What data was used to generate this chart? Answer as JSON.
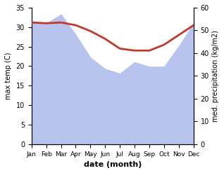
{
  "months": [
    "Jan",
    "Feb",
    "Mar",
    "Apr",
    "May",
    "Jun",
    "Jul",
    "Aug",
    "Sep",
    "Oct",
    "Nov",
    "Dec"
  ],
  "temperature": [
    31.2,
    31.0,
    31.2,
    30.5,
    29.0,
    27.0,
    24.5,
    24.0,
    24.0,
    25.5,
    28.0,
    30.5
  ],
  "precipitation": [
    54,
    53,
    57,
    48,
    38,
    33,
    31,
    36,
    34,
    34,
    43,
    53
  ],
  "temp_color": "#c0392b",
  "precip_fill_color": "#b8c4ee",
  "temp_ylim": [
    0,
    35
  ],
  "precip_ylim": [
    0,
    60
  ],
  "temp_yticks": [
    0,
    5,
    10,
    15,
    20,
    25,
    30,
    35
  ],
  "precip_yticks": [
    0,
    10,
    20,
    30,
    40,
    50,
    60
  ],
  "xlabel": "date (month)",
  "ylabel_left": "max temp (C)",
  "ylabel_right": "med. precipitation (kg/m2)",
  "bg_color": "#ffffff",
  "temp_linewidth": 2.0
}
